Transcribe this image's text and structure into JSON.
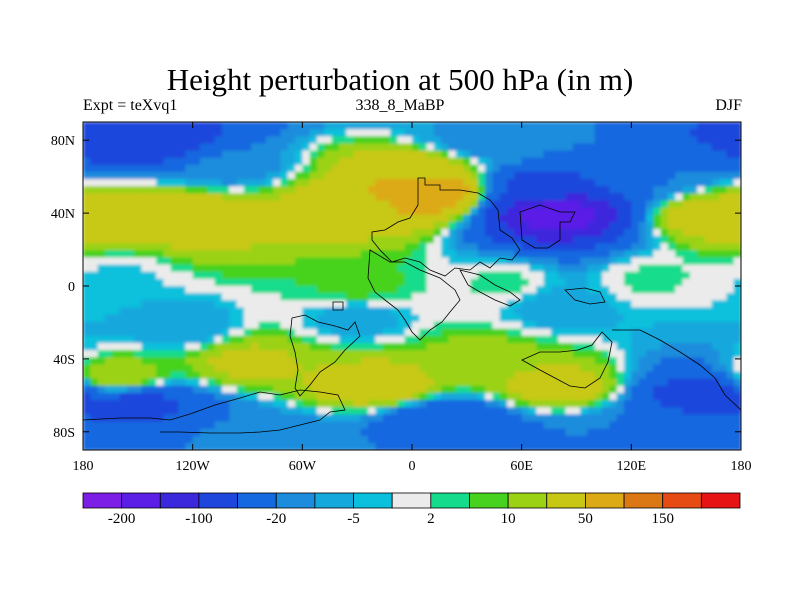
{
  "chart_data": {
    "type": "filled-contour map",
    "title": "Height perturbation at 500 hPa (in m)",
    "left_string": "Expt = teXvq1",
    "center_string": "338_8_MaBP",
    "right_string": "DJF",
    "x_axis": {
      "range": [
        -180,
        180
      ],
      "ticks": [
        -180,
        -120,
        -60,
        0,
        60,
        120,
        180
      ],
      "tick_labels": [
        "180",
        "120W",
        "60W",
        "0",
        "60E",
        "120E",
        "180"
      ]
    },
    "y_axis": {
      "range": [
        -90,
        90
      ],
      "ticks": [
        80,
        40,
        0,
        -40,
        -80
      ],
      "tick_labels": [
        "80N",
        "40N",
        "0",
        "40S",
        "80S"
      ]
    },
    "colorbar": {
      "levels": [
        -200,
        -150,
        -100,
        -50,
        -20,
        -10,
        -5,
        -2,
        2,
        5,
        10,
        20,
        50,
        100,
        150,
        200
      ],
      "labels": [
        {
          "value": -200,
          "text": "-200"
        },
        {
          "value": -100,
          "text": "-100"
        },
        {
          "value": -20,
          "text": "-20"
        },
        {
          "value": -5,
          "text": "-5"
        },
        {
          "value": 2,
          "text": "2"
        },
        {
          "value": 10,
          "text": "10"
        },
        {
          "value": 50,
          "text": "50"
        },
        {
          "value": 150,
          "text": "150"
        }
      ],
      "colors": [
        "#7d1ee6",
        "#5a1ee6",
        "#3c28dc",
        "#1e46dc",
        "#1468e0",
        "#1e8cdc",
        "#14a8dc",
        "#0ac0dc",
        "#ebebeb",
        "#14dc8c",
        "#46d21e",
        "#9bd214",
        "#c8c814",
        "#dcaa14",
        "#dc7814",
        "#e64b14",
        "#e61414"
      ]
    },
    "field_features": [
      {
        "lon": 8,
        "lat": 52,
        "value": 90
      },
      {
        "lon": 0,
        "lat": 65,
        "value": 30
      },
      {
        "lon": -120,
        "lat": 38,
        "value": 40
      },
      {
        "lon": -170,
        "lat": 40,
        "value": 35
      },
      {
        "lon": -40,
        "lat": 42,
        "value": 30
      },
      {
        "lon": 160,
        "lat": 38,
        "value": 30
      },
      {
        "lon": 80,
        "lat": 40,
        "value": -180
      },
      {
        "lon": 70,
        "lat": 55,
        "value": -60
      },
      {
        "lon": 130,
        "lat": 60,
        "value": -20
      },
      {
        "lon": -100,
        "lat": 65,
        "value": -15
      },
      {
        "lon": -150,
        "lat": 78,
        "value": -80
      },
      {
        "lon": 40,
        "lat": 78,
        "value": -15
      },
      {
        "lon": -160,
        "lat": 5,
        "value": -3
      },
      {
        "lon": 50,
        "lat": 2,
        "value": 3
      },
      {
        "lon": 130,
        "lat": 4,
        "value": 3
      },
      {
        "lon": -30,
        "lat": 0,
        "value": 7
      },
      {
        "lon": 80,
        "lat": -12,
        "value": -8
      },
      {
        "lon": -125,
        "lat": -22,
        "value": -10
      },
      {
        "lon": -30,
        "lat": -18,
        "value": -8
      },
      {
        "lon": -90,
        "lat": -42,
        "value": 25
      },
      {
        "lon": -160,
        "lat": -50,
        "value": 20
      },
      {
        "lon": -20,
        "lat": -55,
        "value": 35
      },
      {
        "lon": 80,
        "lat": -55,
        "value": 30
      },
      {
        "lon": 40,
        "lat": -40,
        "value": 15
      },
      {
        "lon": 160,
        "lat": -60,
        "value": -70
      },
      {
        "lon": 125,
        "lat": -80,
        "value": -20
      },
      {
        "lon": -150,
        "lat": -65,
        "value": -60
      },
      {
        "lon": -80,
        "lat": -80,
        "value": -15
      },
      {
        "lon": 20,
        "lat": -73,
        "value": -40
      }
    ]
  }
}
